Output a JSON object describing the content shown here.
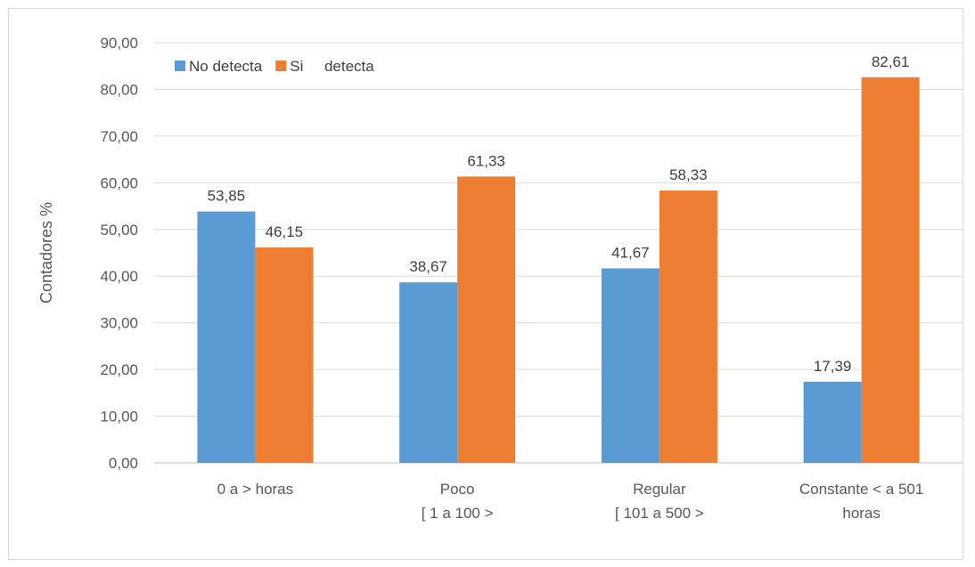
{
  "chart_data": {
    "type": "bar",
    "title": "",
    "xlabel": "",
    "ylabel": "Contadores %",
    "ylim": [
      0,
      90
    ],
    "ytick_step": 10,
    "ytick_labels": [
      "0,00",
      "10,00",
      "20,00",
      "30,00",
      "40,00",
      "50,00",
      "60,00",
      "70,00",
      "80,00",
      "90,00"
    ],
    "grid": true,
    "legend_position": "top-left",
    "categories": [
      [
        "0 a > horas"
      ],
      [
        "Poco",
        "[ 1 a 100 >"
      ],
      [
        "Regular",
        "[ 101 a 500 >"
      ],
      [
        "Constante < a 501",
        "horas"
      ]
    ],
    "series": [
      {
        "name": "No detecta",
        "color": "#5b9bd5",
        "values": [
          53.85,
          38.67,
          41.67,
          17.39
        ],
        "labels": [
          "53,85",
          "38,67",
          "41,67",
          "17,39"
        ]
      },
      {
        "name": "Si     detecta",
        "color": "#ed7d31",
        "values": [
          46.15,
          61.33,
          58.33,
          82.61
        ],
        "labels": [
          "46,15",
          "61,33",
          "58,33",
          "82,61"
        ]
      }
    ]
  }
}
